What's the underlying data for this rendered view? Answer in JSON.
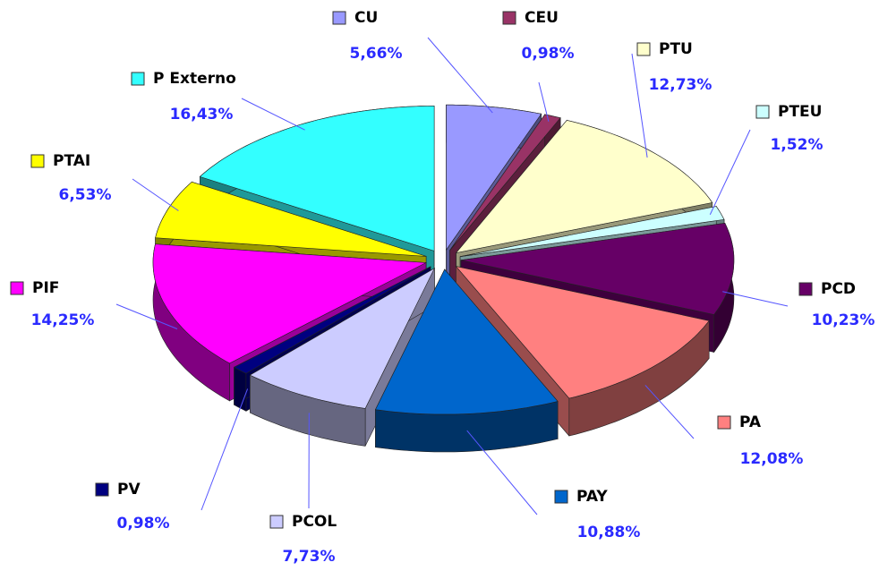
{
  "chart_data": {
    "type": "pie",
    "categories": [
      "CU",
      "CEU",
      "PTU",
      "PTEU",
      "PCD",
      "PA",
      "PAY",
      "PCOL",
      "PV",
      "PIF",
      "PTAI",
      "P Externo"
    ],
    "values": [
      5.66,
      0.98,
      12.73,
      1.52,
      10.23,
      12.08,
      10.88,
      7.73,
      0.98,
      14.25,
      6.53,
      16.43
    ],
    "value_labels": [
      "5,66%",
      "0,98%",
      "12,73%",
      "1,52%",
      "10,23%",
      "12,08%",
      "10,88%",
      "7,73%",
      "0,98%",
      "14,25%",
      "6,53%",
      "16,43%"
    ],
    "colors": [
      "#9999ff",
      "#993366",
      "#ffffcc",
      "#ccffff",
      "#660066",
      "#ff8080",
      "#0066cc",
      "#ccccff",
      "#000080",
      "#ff00ff",
      "#ffff00",
      "#33ffff"
    ]
  }
}
